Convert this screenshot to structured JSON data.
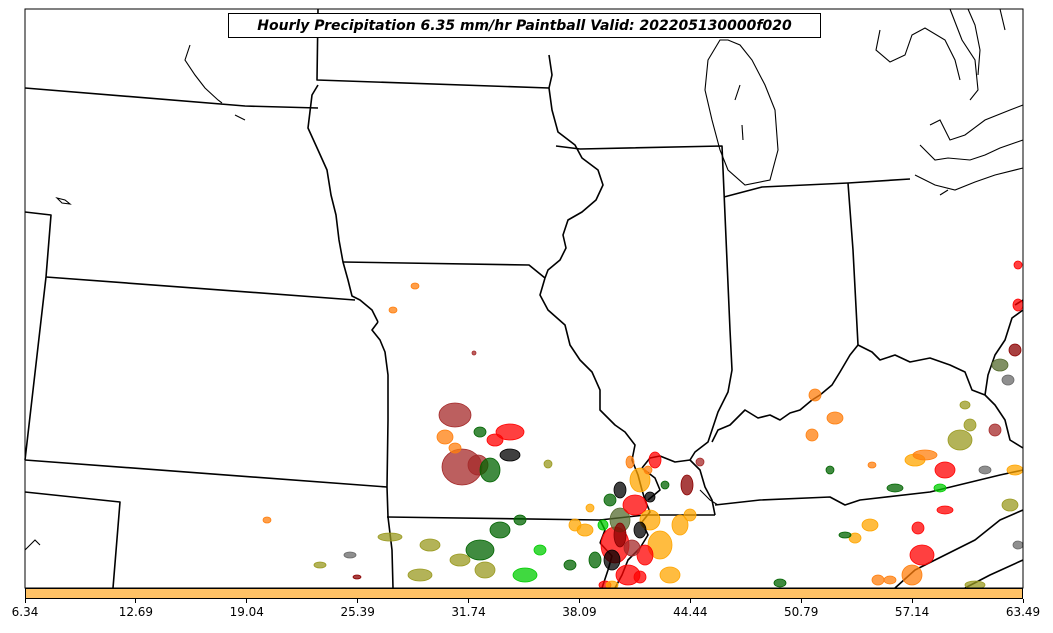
{
  "title": "Hourly Precipitation 6.35 mm/hr Paintball Valid: 202205130000f020",
  "colorbar": {
    "color": "#ffc266",
    "ticks": [
      "6.34",
      "12.69",
      "19.04",
      "25.39",
      "31.74",
      "38.09",
      "44.44",
      "50.79",
      "57.14",
      "63.49"
    ]
  },
  "paintball_colors": [
    "#a52a2a",
    "#ff0000",
    "#ff7f0e",
    "#ffa500",
    "#006400",
    "#00cc00",
    "#9a9a20",
    "#000000",
    "#556b2f",
    "#696969",
    "#8b0000"
  ]
}
